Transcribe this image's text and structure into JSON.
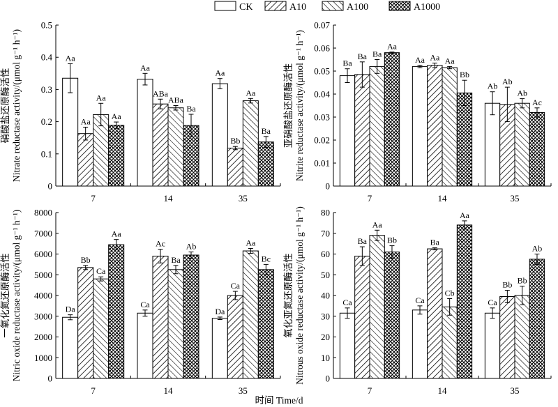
{
  "legend": [
    {
      "name": "CK",
      "pattern": "solid-white"
    },
    {
      "name": "A10",
      "pattern": "diagonal-forward"
    },
    {
      "name": "A100",
      "pattern": "diagonal-back"
    },
    {
      "name": "A1000",
      "pattern": "crosshatch"
    }
  ],
  "xlabel": "时间 Time/d",
  "chart_data": [
    {
      "type": "bar",
      "categories": [
        "7",
        "14",
        "35"
      ],
      "ylabel_cn": "硝酸盐还原酶活性",
      "ylabel_en": "Nitrate reductase activity/(μmol g⁻¹ h⁻¹)",
      "ylim": [
        0,
        0.5
      ],
      "yticks": [
        "0",
        "0.1",
        "0.2",
        "0.3",
        "0.4",
        "0.5"
      ],
      "series": [
        {
          "name": "CK",
          "values": [
            0.335,
            0.332,
            0.318
          ],
          "errors": [
            0.045,
            0.018,
            0.016
          ],
          "labels": [
            "Aa",
            "Aa",
            "Aa"
          ]
        },
        {
          "name": "A10",
          "values": [
            0.163,
            0.255,
            0.118
          ],
          "errors": [
            0.02,
            0.015,
            0.005
          ],
          "labels": [
            "Aa",
            "ABa",
            "Bb"
          ]
        },
        {
          "name": "A100",
          "values": [
            0.222,
            0.243,
            0.265
          ],
          "errors": [
            0.035,
            0.007,
            0.007
          ],
          "labels": [
            "Aa",
            "ABa",
            "Aa"
          ]
        },
        {
          "name": "A1000",
          "values": [
            0.189,
            0.188,
            0.137
          ],
          "errors": [
            0.01,
            0.035,
            0.017
          ],
          "labels": [
            "Aa",
            "Ba",
            "Ba"
          ]
        }
      ]
    },
    {
      "type": "bar",
      "categories": [
        "7",
        "14",
        "35"
      ],
      "ylabel_cn": "亚硝酸盐还原酶活性",
      "ylabel_en": "Nitrite reductase activity/(μmol g⁻¹ h⁻¹)",
      "ylim": [
        0,
        0.07
      ],
      "yticks": [
        "0",
        "0.01",
        "0.02",
        "0.03",
        "0.04",
        "0.05",
        "0.06",
        "0.07"
      ],
      "series": [
        {
          "name": "CK",
          "values": [
            0.048,
            0.052,
            0.036
          ],
          "errors": [
            0.003,
            0.0005,
            0.005
          ],
          "labels": [
            "Ba",
            "Aa",
            "Ab"
          ]
        },
        {
          "name": "A10",
          "values": [
            0.0485,
            0.0525,
            0.0355
          ],
          "errors": [
            0.0055,
            0.001,
            0.0075
          ],
          "labels": [
            "Ba",
            "Aa",
            "Ab"
          ]
        },
        {
          "name": "A100",
          "values": [
            0.052,
            0.0515,
            0.036
          ],
          "errors": [
            0.003,
            0.0005,
            0.002
          ],
          "labels": [
            "Ba",
            "Aa",
            "Ab"
          ]
        },
        {
          "name": "A1000",
          "values": [
            0.058,
            0.0405,
            0.032
          ],
          "errors": [
            0.0003,
            0.0055,
            0.002
          ],
          "labels": [
            "Aa",
            "Bb",
            "Ac"
          ]
        }
      ]
    },
    {
      "type": "bar",
      "categories": [
        "7",
        "14",
        "35"
      ],
      "ylabel_cn": "一氧化氮还原酶活性",
      "ylabel_en": "Nitric oxide reductase activity/(μmol g⁻¹ h⁻¹)",
      "ylim": [
        0,
        8000
      ],
      "yticks": [
        "0",
        "1000",
        "2000",
        "3000",
        "4000",
        "5000",
        "6000",
        "7000",
        "8000"
      ],
      "series": [
        {
          "name": "CK",
          "values": [
            2950,
            3150,
            2900
          ],
          "errors": [
            120,
            150,
            60
          ],
          "labels": [
            "Da",
            "Ca",
            "Da"
          ]
        },
        {
          "name": "A10",
          "values": [
            5350,
            5900,
            4000
          ],
          "errors": [
            100,
            330,
            200
          ],
          "labels": [
            "Bb",
            "Ac",
            "Ca"
          ]
        },
        {
          "name": "A100",
          "values": [
            4800,
            5250,
            6150
          ],
          "errors": [
            100,
            200,
            120
          ],
          "labels": [
            "Ca",
            "Ba",
            "Aa"
          ]
        },
        {
          "name": "A1000",
          "values": [
            6450,
            5950,
            5250
          ],
          "errors": [
            250,
            150,
            250
          ],
          "labels": [
            "Aa",
            "Ab",
            "Bc"
          ]
        }
      ]
    },
    {
      "type": "bar",
      "categories": [
        "7",
        "14",
        "35"
      ],
      "ylabel_cn": "氧化亚氮还原酶活性",
      "ylabel_en": "Nitrous oxide reductase activity/(μmol g⁻¹ h⁻¹)",
      "ylim": [
        0,
        80
      ],
      "yticks": [
        "0",
        "10",
        "20",
        "30",
        "40",
        "50",
        "60",
        "70",
        "80"
      ],
      "series": [
        {
          "name": "CK",
          "values": [
            31.5,
            33,
            31.5
          ],
          "errors": [
            2.5,
            2,
            2.5
          ],
          "labels": [
            "Ca",
            "Ca",
            "Ca"
          ]
        },
        {
          "name": "A10",
          "values": [
            59,
            62.5,
            39.5
          ],
          "errors": [
            4.5,
            0.5,
            3
          ],
          "labels": [
            "Ba",
            "Ba",
            "Bb"
          ]
        },
        {
          "name": "A100",
          "values": [
            69,
            34.5,
            40
          ],
          "errors": [
            2.5,
            4,
            4.5
          ],
          "labels": [
            "Aa",
            "Cb",
            "Bb"
          ]
        },
        {
          "name": "A1000",
          "values": [
            61,
            74,
            57.5
          ],
          "errors": [
            3,
            2,
            2.5
          ],
          "labels": [
            "Bb",
            "Aa",
            "Ab"
          ]
        }
      ]
    }
  ]
}
